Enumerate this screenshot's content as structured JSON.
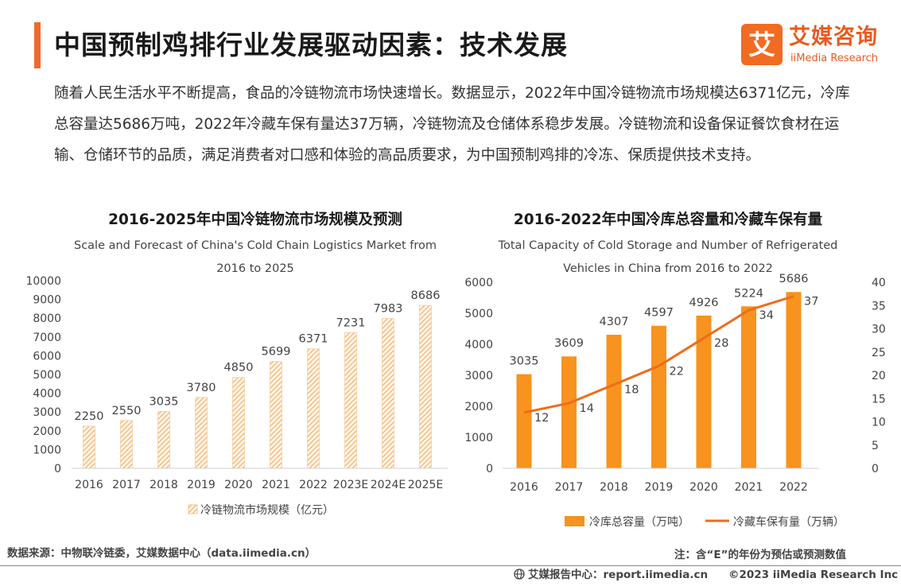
{
  "header": {
    "title": "中国预制鸡排行业发展驱动因素：技术发展",
    "logo_cn": "艾媒咨询",
    "logo_en": "iiMedia Research",
    "logo_mark_char": "艾"
  },
  "intro": {
    "text": "随着人民生活水平不断提高，食品的冷链物流市场快速增长。数据显示，2022年中国冷链物流市场规模达6371亿元，冷库总容量达5686万吨，2022年冷藏车保有量达37万辆，冷链物流及仓储体系稳步发展。冷链物流和设备保证餐饮食材在运输、仓储环节的品质，满足消费者对口感和体验的高品质要求，为中国预制鸡排的冷冻、保质提供技术支持。"
  },
  "colors": {
    "accent": "#f06a2a",
    "bar_orange": "#f7931e",
    "line_orange": "#ef6c1a",
    "hatched_bar": "#f7c08a"
  },
  "chart_data": [
    {
      "type": "bar",
      "title": "2016-2025年中国冷链物流市场规模及预测",
      "subtitle": "Scale and Forecast of China's Cold Chain Logistics Market from 2016 to 2025",
      "categories": [
        "2016",
        "2017",
        "2018",
        "2019",
        "2020",
        "2021",
        "2022",
        "2023E",
        "2024E",
        "2025E"
      ],
      "series": [
        {
          "name": "冷链物流市场规模（亿元）",
          "values": [
            2250,
            2550,
            3035,
            3780,
            4850,
            5699,
            6371,
            7231,
            7983,
            8686
          ]
        }
      ],
      "ylim": [
        0,
        10000
      ],
      "yticks": [
        0,
        1000,
        2000,
        3000,
        4000,
        5000,
        6000,
        7000,
        8000,
        9000,
        10000
      ],
      "grid": false,
      "legend": "bottom"
    },
    {
      "type": "bar",
      "title": "2016-2022年中国冷库总容量和冷藏车保有量",
      "subtitle": "Total Capacity of Cold Storage and Number of Refrigerated Vehicles in China from 2016 to 2022",
      "categories": [
        "2016",
        "2017",
        "2018",
        "2019",
        "2020",
        "2021",
        "2022"
      ],
      "series": [
        {
          "name": "冷库总容量（万吨）",
          "type": "bar",
          "axis": "left",
          "values": [
            3035,
            3609,
            4307,
            4597,
            4926,
            5224,
            5686
          ]
        },
        {
          "name": "冷藏车保有量（万辆）",
          "type": "line",
          "axis": "right",
          "values": [
            12,
            14,
            18,
            22,
            28,
            34,
            37
          ]
        }
      ],
      "ylim": [
        0,
        6000
      ],
      "yticks": [
        0,
        1000,
        2000,
        3000,
        4000,
        5000,
        6000
      ],
      "y2lim": [
        0,
        40
      ],
      "y2ticks": [
        0,
        5,
        10,
        15,
        20,
        25,
        30,
        35,
        40
      ],
      "grid": false,
      "legend": "bottom"
    }
  ],
  "footer": {
    "source": "数据来源：中物联冷链委，艾媒数据中心（data.iimedia.cn）",
    "note": "注：含“E”的年份为预估或预测数值",
    "report_site": "艾媒报告中心：report.iimedia.cn",
    "copyright": "©2023  iiMedia Research  Inc"
  }
}
